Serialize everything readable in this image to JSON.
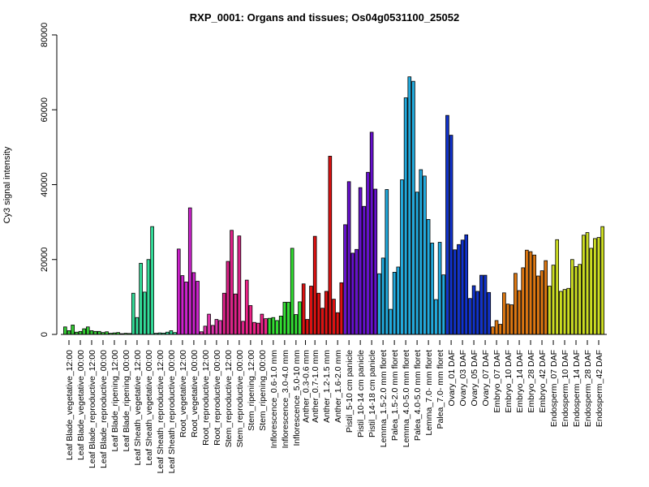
{
  "chart_data": {
    "type": "bar",
    "title": "RXP_0001: Organs and tissues; Os04g0531100_25052",
    "xlabel": "",
    "ylabel": "Cy3 signal intensity",
    "ylim": [
      0,
      80000
    ],
    "yticks": [
      "0",
      "20000",
      "40000",
      "60000",
      "80000"
    ],
    "grid": false,
    "legend": "none",
    "groups": [
      {
        "label": "Leaf Blade_vegetative_12:00",
        "color": "#33cc33",
        "values": [
          2000,
          1000,
          2500
        ]
      },
      {
        "label": "Leaf Blade_vegetative_00:00",
        "color": "#33cc33",
        "values": [
          600,
          800,
          1500
        ]
      },
      {
        "label": "Leaf Blade_reproductive_12:00",
        "color": "#33cc33",
        "values": [
          2000,
          1000,
          800
        ]
      },
      {
        "label": "Leaf Blade_reproductive_00:00",
        "color": "#33cc33",
        "values": [
          800,
          500,
          700
        ]
      },
      {
        "label": "Leaf Blade_ripening_12:00",
        "color": "#33cc33",
        "values": [
          300,
          400,
          500
        ]
      },
      {
        "label": "Leaf Blade_ripening_00:00",
        "color": "#33cc33",
        "values": [
          200,
          300,
          250
        ]
      },
      {
        "label": "Leaf Sheath_vegetative_12:00",
        "color": "#33dd99",
        "values": [
          11000,
          4500,
          19000
        ]
      },
      {
        "label": "Leaf Sheath_vegetative_00:00",
        "color": "#33dd99",
        "values": [
          11300,
          20000,
          28800
        ]
      },
      {
        "label": "Leaf Sheath_reproductive_12:00",
        "color": "#33dd99",
        "values": [
          300,
          400,
          350
        ]
      },
      {
        "label": "Leaf Sheath_reproductive_00:00",
        "color": "#33dd99",
        "values": [
          600,
          1000,
          500
        ]
      },
      {
        "label": "Root_vegetative_12:00",
        "color": "#cc22cc",
        "values": [
          22800,
          15700,
          14000
        ]
      },
      {
        "label": "Root_vegetative_00:00",
        "color": "#cc22cc",
        "values": [
          33800,
          16500,
          14200
        ]
      },
      {
        "label": "Root_reproductive_12:00",
        "color": "#dd33aa",
        "values": [
          700,
          2200,
          5400
        ]
      },
      {
        "label": "Root_reproductive_00:00",
        "color": "#dd33aa",
        "values": [
          2400,
          4000,
          3700
        ]
      },
      {
        "label": "Stem_reproductive_12:00",
        "color": "#dd2288",
        "values": [
          11000,
          19500,
          27800
        ]
      },
      {
        "label": "Stem_reproductive_00:00",
        "color": "#dd2288",
        "values": [
          10800,
          26300,
          3500
        ]
      },
      {
        "label": "Stem_ripening_12:00",
        "color": "#ee2288",
        "values": [
          14500,
          7700,
          3200
        ]
      },
      {
        "label": "Stem_ripening_00:00",
        "color": "#ee2288",
        "values": [
          3000,
          5400,
          4200
        ]
      },
      {
        "label": "Inflorescence_0.6-1.0 mm",
        "color": "#33dd33",
        "values": [
          4300,
          4500,
          3700
        ]
      },
      {
        "label": "Inflorescence_3.0-4.0 mm",
        "color": "#33dd33",
        "values": [
          4900,
          8600,
          8600
        ]
      },
      {
        "label": "Inflorescence_5.0-10 mm",
        "color": "#33dd33",
        "values": [
          23000,
          5300,
          8700
        ]
      },
      {
        "label": "Anther_0.3-0.6 mm",
        "color": "#dd1111",
        "values": [
          13500,
          4000
        ]
      },
      {
        "label": "Anther_0.7-1.0 mm",
        "color": "#dd1111",
        "values": [
          12900,
          26200,
          11000
        ]
      },
      {
        "label": "Anther_1.2-1.5 mm",
        "color": "#dd1111",
        "values": [
          7000,
          11500,
          47600
        ]
      },
      {
        "label": "Anther_1.6-2.0 mm",
        "color": "#dd1111",
        "values": [
          9400,
          5800,
          13800
        ]
      },
      {
        "label": "Pistil_5-10 cm panicle",
        "color": "#6611cc",
        "values": [
          29300,
          40800,
          21700
        ]
      },
      {
        "label": "Pistil_10-14 cm panicle",
        "color": "#6611cc",
        "values": [
          22700,
          39200,
          34200
        ]
      },
      {
        "label": "Pistil_14-18 cm panicle",
        "color": "#6611cc",
        "values": [
          43300,
          54000,
          38800
        ]
      },
      {
        "label": "Lemma_1.5-2.0 mm floret",
        "color": "#22aadd",
        "values": [
          16200,
          20400,
          38700
        ]
      },
      {
        "label": "Palea_1.5-2.0 mm floret",
        "color": "#22aadd",
        "values": [
          6700,
          16600,
          18000
        ]
      },
      {
        "label": "Lemma_4.0-5.0 mm floret",
        "color": "#22aadd",
        "values": [
          41300,
          63200,
          68800
        ]
      },
      {
        "label": "Palea_4.0-5.0 mm floret",
        "color": "#22aadd",
        "values": [
          67600,
          38000,
          44000
        ]
      },
      {
        "label": "Lemma_7.0- mm floret",
        "color": "#22aadd",
        "values": [
          42300,
          30700,
          24400
        ]
      },
      {
        "label": "Palea_7.0- mm floret",
        "color": "#22aadd",
        "values": [
          9300,
          24600,
          15900
        ]
      },
      {
        "label": "Ovary_01 DAF",
        "color": "#1133cc",
        "values": [
          58500,
          53200,
          22600
        ]
      },
      {
        "label": "Ovary_03 DAF",
        "color": "#1133cc",
        "values": [
          24000,
          25200,
          26600
        ]
      },
      {
        "label": "Ovary_05 DAF",
        "color": "#1133cc",
        "values": [
          9600,
          13000,
          11500
        ]
      },
      {
        "label": "Ovary_07 DAF",
        "color": "#1133cc",
        "values": [
          15800,
          15800,
          11200
        ]
      },
      {
        "label": "Embryo_07 DAF",
        "color": "#dd7711",
        "values": [
          2000,
          3700,
          2700
        ]
      },
      {
        "label": "Embryo_10 DAF",
        "color": "#dd7711",
        "values": [
          11100,
          8100,
          7900
        ]
      },
      {
        "label": "Embryo_14 DAF",
        "color": "#dd7711",
        "values": [
          16300,
          11700,
          17800
        ]
      },
      {
        "label": "Embryo_28 DAF",
        "color": "#dd7711",
        "values": [
          22500,
          22100,
          21200
        ]
      },
      {
        "label": "Embryo_42 DAF",
        "color": "#dd7711",
        "values": [
          15600,
          17000,
          19700
        ]
      },
      {
        "label": "Endosperm_07 DAF",
        "color": "#ccdd22",
        "values": [
          12900,
          18500,
          25300
        ]
      },
      {
        "label": "Endosperm_10 DAF",
        "color": "#ccdd22",
        "values": [
          11500,
          12000,
          12300
        ]
      },
      {
        "label": "Endosperm_14 DAF",
        "color": "#ccdd22",
        "values": [
          20000,
          18100,
          18700
        ]
      },
      {
        "label": "Endosperm_28 DAF",
        "color": "#ccdd22",
        "values": [
          26500,
          27200,
          23000
        ]
      },
      {
        "label": "Endosperm_42 DAF",
        "color": "#ccdd22",
        "values": [
          25600,
          25900,
          28800
        ]
      }
    ]
  }
}
